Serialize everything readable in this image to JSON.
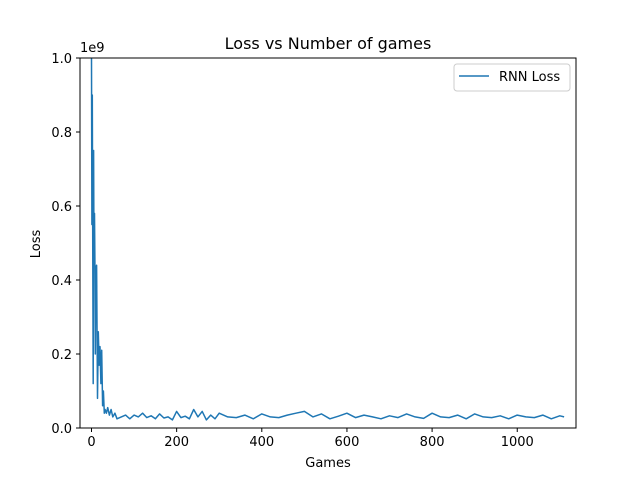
{
  "chart_data": {
    "type": "line",
    "title": "Loss vs Number of games",
    "xlabel": "Games",
    "ylabel": "Loss",
    "y_scale_label": "1e9",
    "xlim": [
      -27,
      1138
    ],
    "ylim": [
      0,
      1.0
    ],
    "x_ticks": [
      0,
      200,
      400,
      600,
      800,
      1000
    ],
    "y_ticks": [
      0.0,
      0.2,
      0.4,
      0.6,
      0.8,
      1.0
    ],
    "x_tick_labels": [
      "0",
      "200",
      "400",
      "600",
      "800",
      "1000"
    ],
    "y_tick_labels": [
      "0.0",
      "0.2",
      "0.4",
      "0.6",
      "0.8",
      "1.0"
    ],
    "grid": false,
    "legend_position": "top-right",
    "series": [
      {
        "name": "RNN Loss",
        "color": "#1f77b4",
        "x": [
          0,
          1,
          2,
          3,
          4,
          5,
          6,
          7,
          8,
          9,
          10,
          12,
          14,
          16,
          18,
          20,
          22,
          24,
          26,
          28,
          30,
          32,
          35,
          38,
          42,
          46,
          50,
          55,
          60,
          70,
          80,
          90,
          100,
          110,
          120,
          130,
          140,
          150,
          160,
          170,
          180,
          190,
          200,
          210,
          220,
          230,
          240,
          250,
          260,
          270,
          280,
          290,
          300,
          320,
          340,
          360,
          380,
          400,
          420,
          440,
          460,
          480,
          500,
          520,
          540,
          560,
          580,
          600,
          620,
          640,
          660,
          680,
          700,
          720,
          740,
          760,
          780,
          800,
          820,
          840,
          860,
          880,
          900,
          920,
          940,
          960,
          980,
          1000,
          1020,
          1040,
          1060,
          1080,
          1100,
          1110
        ],
        "y": [
          1.0,
          0.55,
          0.9,
          0.44,
          0.12,
          0.75,
          0.46,
          0.58,
          0.45,
          0.2,
          0.43,
          0.44,
          0.08,
          0.26,
          0.17,
          0.22,
          0.12,
          0.21,
          0.06,
          0.1,
          0.04,
          0.05,
          0.04,
          0.055,
          0.035,
          0.05,
          0.03,
          0.04,
          0.025,
          0.03,
          0.035,
          0.025,
          0.035,
          0.03,
          0.04,
          0.028,
          0.033,
          0.025,
          0.038,
          0.027,
          0.03,
          0.022,
          0.045,
          0.028,
          0.032,
          0.025,
          0.05,
          0.03,
          0.045,
          0.022,
          0.035,
          0.025,
          0.04,
          0.03,
          0.028,
          0.035,
          0.025,
          0.038,
          0.03,
          0.028,
          0.035,
          0.04,
          0.045,
          0.03,
          0.038,
          0.025,
          0.032,
          0.04,
          0.028,
          0.035,
          0.03,
          0.025,
          0.033,
          0.028,
          0.038,
          0.03,
          0.026,
          0.04,
          0.03,
          0.028,
          0.035,
          0.025,
          0.038,
          0.03,
          0.028,
          0.033,
          0.025,
          0.035,
          0.03,
          0.028,
          0.035,
          0.025,
          0.033,
          0.03
        ]
      }
    ]
  }
}
